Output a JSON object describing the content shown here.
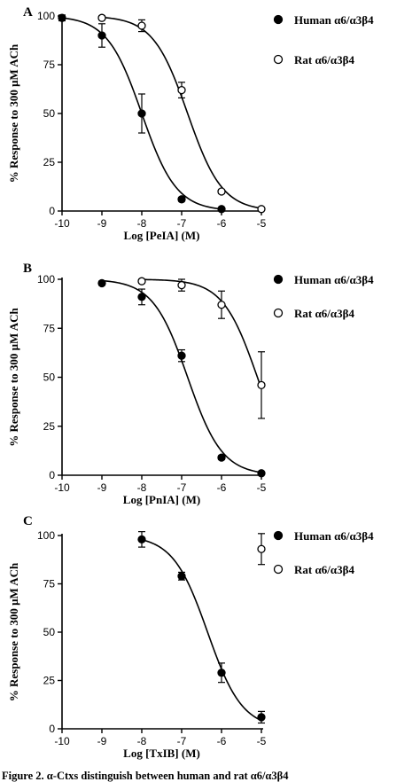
{
  "chart_data": [
    {
      "type": "scatter",
      "panel_label": "A",
      "xlabel": "Log [PeIA] (M)",
      "ylabel": "% Response to 300 μM ACh",
      "xlim": [
        -10,
        -5
      ],
      "ylim": [
        0,
        100
      ],
      "x_ticks": [
        -10,
        -9,
        -8,
        -7,
        -6,
        -5
      ],
      "y_ticks": [
        0,
        25,
        50,
        75,
        100
      ],
      "legend_position": "right",
      "series": [
        {
          "name": "Human α6/α3β4",
          "marker": "filled-circle",
          "color": "#000000",
          "x": [
            -10,
            -9,
            -8,
            -7,
            -6
          ],
          "y": [
            99,
            90,
            50,
            6,
            1
          ],
          "error": [
            1.5,
            6,
            10,
            1,
            0.5
          ],
          "fit": {
            "ic50_log": -8.0,
            "hill": 1.0
          }
        },
        {
          "name": "Rat α6/α3β4",
          "marker": "open-circle",
          "color": "#000000",
          "x": [
            -9,
            -8,
            -7,
            -6,
            -5
          ],
          "y": [
            99,
            95,
            62,
            10,
            1
          ],
          "error": [
            1,
            3,
            4,
            1,
            0.5
          ],
          "fit": {
            "ic50_log": -6.85,
            "hill": 1.0
          }
        }
      ]
    },
    {
      "type": "scatter",
      "panel_label": "B",
      "xlabel": "Log [PnIA] (M)",
      "ylabel": "% Response to 300 μM ACh",
      "xlim": [
        -10,
        -5
      ],
      "ylim": [
        0,
        100
      ],
      "x_ticks": [
        -10,
        -9,
        -8,
        -7,
        -6,
        -5
      ],
      "y_ticks": [
        0,
        25,
        50,
        75,
        100
      ],
      "legend_position": "right",
      "series": [
        {
          "name": "Human α6/α3β4",
          "marker": "filled-circle",
          "color": "#000000",
          "x": [
            -9,
            -8,
            -7,
            -6,
            -5
          ],
          "y": [
            98,
            91,
            61,
            9,
            1
          ],
          "error": [
            1,
            4,
            3,
            1,
            0.5
          ],
          "fit": {
            "ic50_log": -6.85,
            "hill": 1.0
          }
        },
        {
          "name": "Rat α6/α3β4",
          "marker": "open-circle",
          "color": "#000000",
          "x": [
            -8,
            -7,
            -6,
            -5
          ],
          "y": [
            99,
            97,
            87,
            46
          ],
          "error": [
            1,
            3,
            7,
            17
          ],
          "fit": {
            "ic50_log": -5.1,
            "hill": 1.0
          }
        }
      ]
    },
    {
      "type": "scatter",
      "panel_label": "C",
      "xlabel": "Log [TxIB] (M)",
      "ylabel": "% Response to 300 μM ACh",
      "xlim": [
        -10,
        -5
      ],
      "ylim": [
        0,
        100
      ],
      "x_ticks": [
        -10,
        -9,
        -8,
        -7,
        -6,
        -5
      ],
      "y_ticks": [
        0,
        25,
        50,
        75,
        100
      ],
      "legend_position": "right",
      "series": [
        {
          "name": "Human α6/α3β4",
          "marker": "filled-circle",
          "color": "#000000",
          "x": [
            -8,
            -7,
            -6,
            -5
          ],
          "y": [
            98,
            79,
            29,
            6
          ],
          "error": [
            4,
            2,
            5,
            3
          ],
          "fit": {
            "ic50_log": -6.35,
            "hill": 1.0
          }
        },
        {
          "name": "Rat α6/α3β4",
          "marker": "open-circle",
          "color": "#000000",
          "x": [
            -5
          ],
          "y": [
            93
          ],
          "error": [
            8
          ],
          "fit": null
        }
      ]
    }
  ],
  "caption": "Figure 2. α-Ctxs distinguish between human and rat α6/α3β4"
}
